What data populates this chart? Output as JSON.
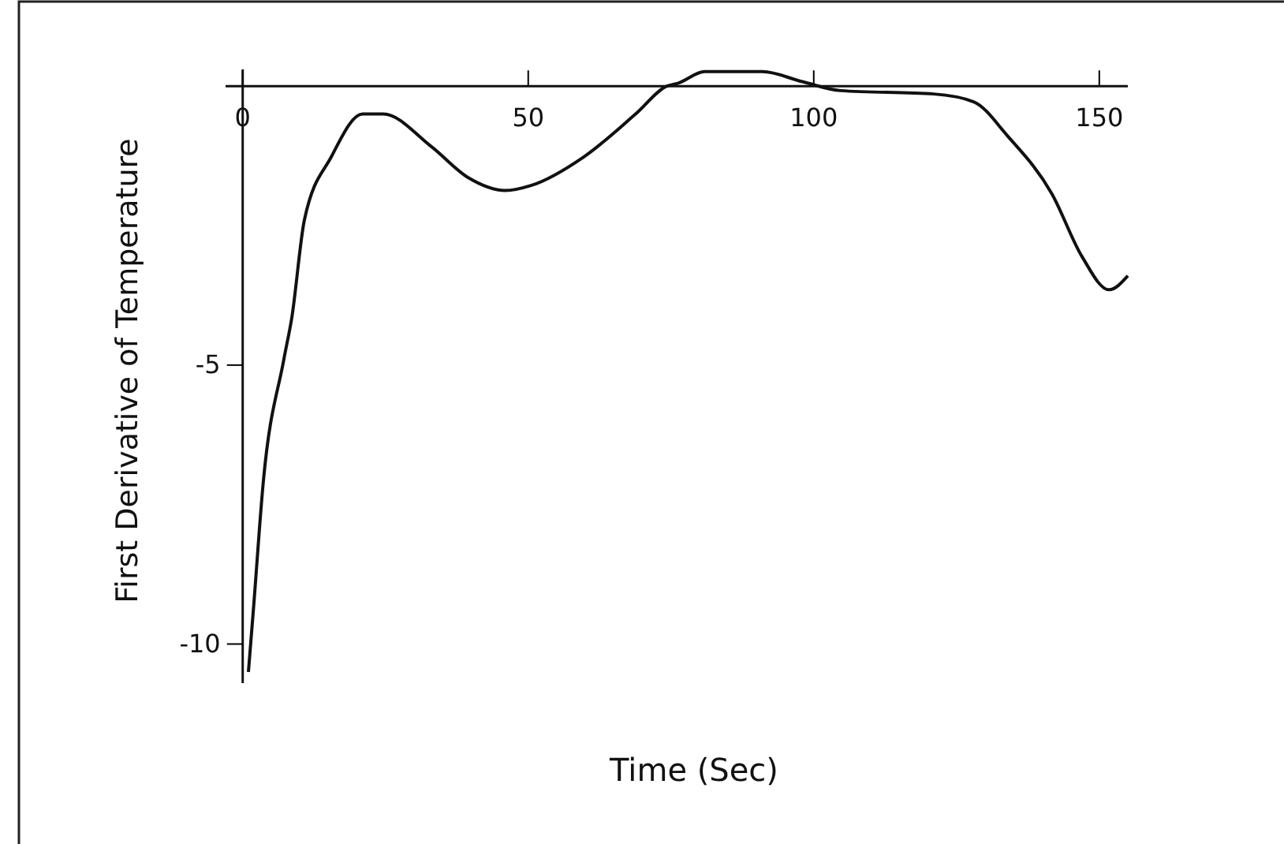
{
  "chart_data": {
    "type": "line",
    "xlabel": "Time (Sec)",
    "ylabel": "First Derivative of Temperature",
    "x": [
      1,
      1.9,
      3.6,
      7.2,
      8.6,
      10.8,
      15.5,
      21,
      24.6,
      33,
      39.5,
      46,
      50.5,
      59.7,
      68.8,
      74.3,
      76.2,
      80.9,
      91,
      98,
      104.7,
      121,
      128,
      134,
      141.7,
      147,
      151.7,
      155
    ],
    "series": [
      {
        "color": "#111111",
        "values": [
          -10.5,
          -9.35,
          -7.1,
          -4.9,
          -4.15,
          -2.4,
          -1.27,
          -0.5,
          -0.5,
          -1.08,
          -1.64,
          -1.87,
          -1.78,
          -1.27,
          -0.5,
          0,
          0.05,
          0.26,
          0.26,
          0.08,
          -0.08,
          -0.14,
          -0.28,
          -0.9,
          -1.93,
          -3.06,
          -3.65,
          -3.4
        ]
      }
    ],
    "xlim": [
      -3,
      155
    ],
    "ylim": [
      -10.7,
      0.3
    ],
    "xticks": [
      0,
      50,
      100,
      150
    ],
    "yticks": [
      -10,
      -5
    ],
    "grid": false,
    "marker": "none",
    "line_style": "solid"
  }
}
